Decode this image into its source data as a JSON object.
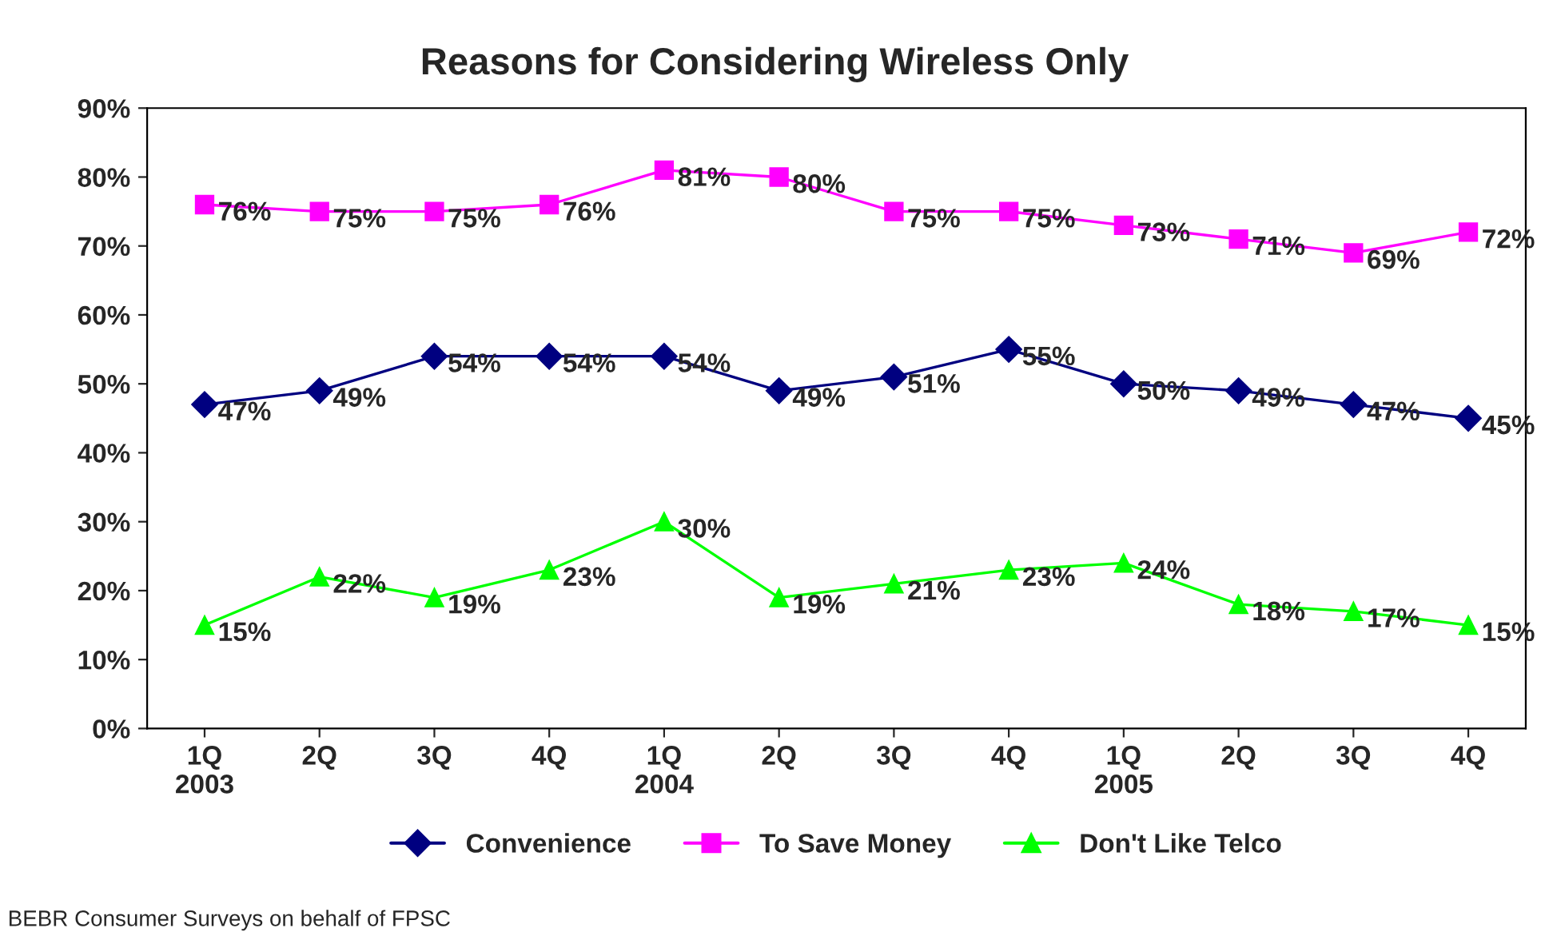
{
  "chart_data": {
    "type": "line",
    "title": "Reasons for Considering Wireless Only",
    "categories": [
      "1Q\n2003",
      "2Q",
      "3Q",
      "4Q",
      "1Q\n2004",
      "2Q",
      "3Q",
      "4Q",
      "1Q\n2005",
      "2Q",
      "3Q",
      "4Q"
    ],
    "series": [
      {
        "name": "Convenience",
        "color": "#000080",
        "marker": "diamond",
        "values": [
          47,
          49,
          54,
          54,
          54,
          49,
          51,
          55,
          50,
          49,
          47,
          45
        ],
        "value_labels": [
          "47%",
          "49%",
          "54%",
          "54%",
          "54%",
          "49%",
          "51%",
          "55%",
          "50%",
          "49%",
          "47%",
          "45%"
        ]
      },
      {
        "name": "To Save Money",
        "color": "#ff00ff",
        "marker": "square",
        "values": [
          76,
          75,
          75,
          76,
          81,
          80,
          75,
          75,
          73,
          71,
          69,
          72
        ],
        "value_labels": [
          "76%",
          "75%",
          "75%",
          "76%",
          "81%",
          "80%",
          "75%",
          "75%",
          "73%",
          "71%",
          "69%",
          "72%"
        ]
      },
      {
        "name": "Don't Like Telco",
        "color": "#00ff00",
        "marker": "triangle",
        "values": [
          15,
          22,
          19,
          23,
          30,
          19,
          21,
          23,
          24,
          18,
          17,
          15
        ],
        "value_labels": [
          "15%",
          "22%",
          "19%",
          "23%",
          "30%",
          "19%",
          "21%",
          "23%",
          "24%",
          "18%",
          "17%",
          "15%"
        ]
      }
    ],
    "ylim": [
      0,
      90
    ],
    "yticks": [
      {
        "value": 0,
        "label": "0%"
      },
      {
        "value": 10,
        "label": "10%"
      },
      {
        "value": 20,
        "label": "20%"
      },
      {
        "value": 30,
        "label": "30%"
      },
      {
        "value": 40,
        "label": "40%"
      },
      {
        "value": 50,
        "label": "50%"
      },
      {
        "value": 60,
        "label": "60%"
      },
      {
        "value": 70,
        "label": "70%"
      },
      {
        "value": 80,
        "label": "80%"
      },
      {
        "value": 90,
        "label": "90%"
      }
    ],
    "grid": false,
    "legend": "bottom",
    "line_style": "solid",
    "annotations": [
      "BEBR Consumer Surveys on behalf of FPSC"
    ]
  }
}
